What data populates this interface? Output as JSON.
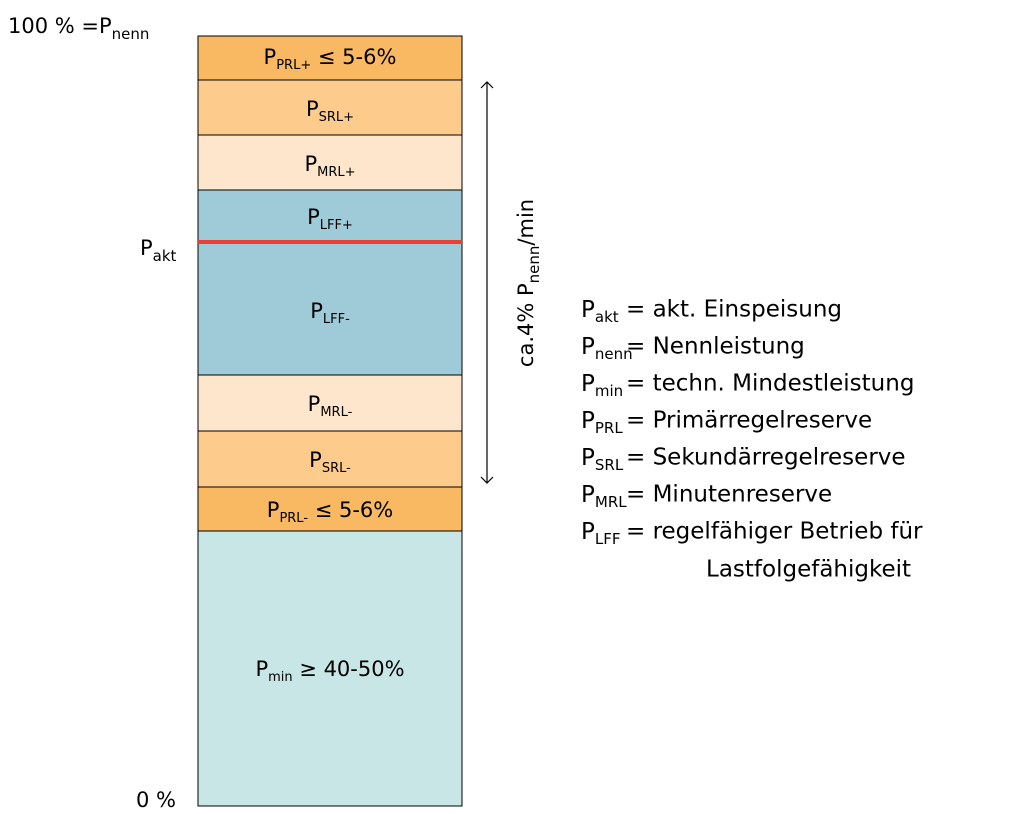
{
  "axis": {
    "top": {
      "text": "100 % =P",
      "sub": "nenn"
    },
    "current": {
      "symbol": "P",
      "sub": "akt"
    },
    "bottom": "0 %"
  },
  "blocks": [
    {
      "symbol": "P",
      "sub": "PRL+",
      "suffix": " ≤ 5-6%"
    },
    {
      "symbol": "P",
      "sub": "SRL+"
    },
    {
      "symbol": "P",
      "sub": "MRL+"
    },
    {
      "symbol": "P",
      "sub": "LFF+"
    },
    {
      "symbol": "P",
      "sub": "LFF-"
    },
    {
      "symbol": "P",
      "sub": "MRL-"
    },
    {
      "symbol": "P",
      "sub": "SRL-"
    },
    {
      "symbol": "P",
      "sub": "PRL-",
      "suffix": " ≤ 5-6%"
    },
    {
      "symbol": "P",
      "sub": "min",
      "suffix": " ≥ 40-50%"
    }
  ],
  "ramp": {
    "prefix": "ca.4% P",
    "sub": "nenn",
    "suffix": "/min"
  },
  "legend": [
    {
      "symbol": "P",
      "sub": "akt",
      "lines": [
        "= akt. Einspeisung"
      ]
    },
    {
      "symbol": "P",
      "sub": "nenn",
      "lines": [
        "= Nennleistung"
      ]
    },
    {
      "symbol": "P",
      "sub": "min",
      "lines": [
        "= techn. Mindestleistung"
      ]
    },
    {
      "symbol": "P",
      "sub": "PRL",
      "lines": [
        "= Primärregelreserve"
      ]
    },
    {
      "symbol": "P",
      "sub": "SRL",
      "lines": [
        "= Sekundärregelreserve"
      ]
    },
    {
      "symbol": "P",
      "sub": "MRL",
      "lines": [
        "= Minutenreserve"
      ]
    },
    {
      "symbol": "P",
      "sub": "LFF",
      "lines": [
        "= regelfähiger Betrieb für",
        "Lastfolgefähigkeit"
      ]
    }
  ]
}
